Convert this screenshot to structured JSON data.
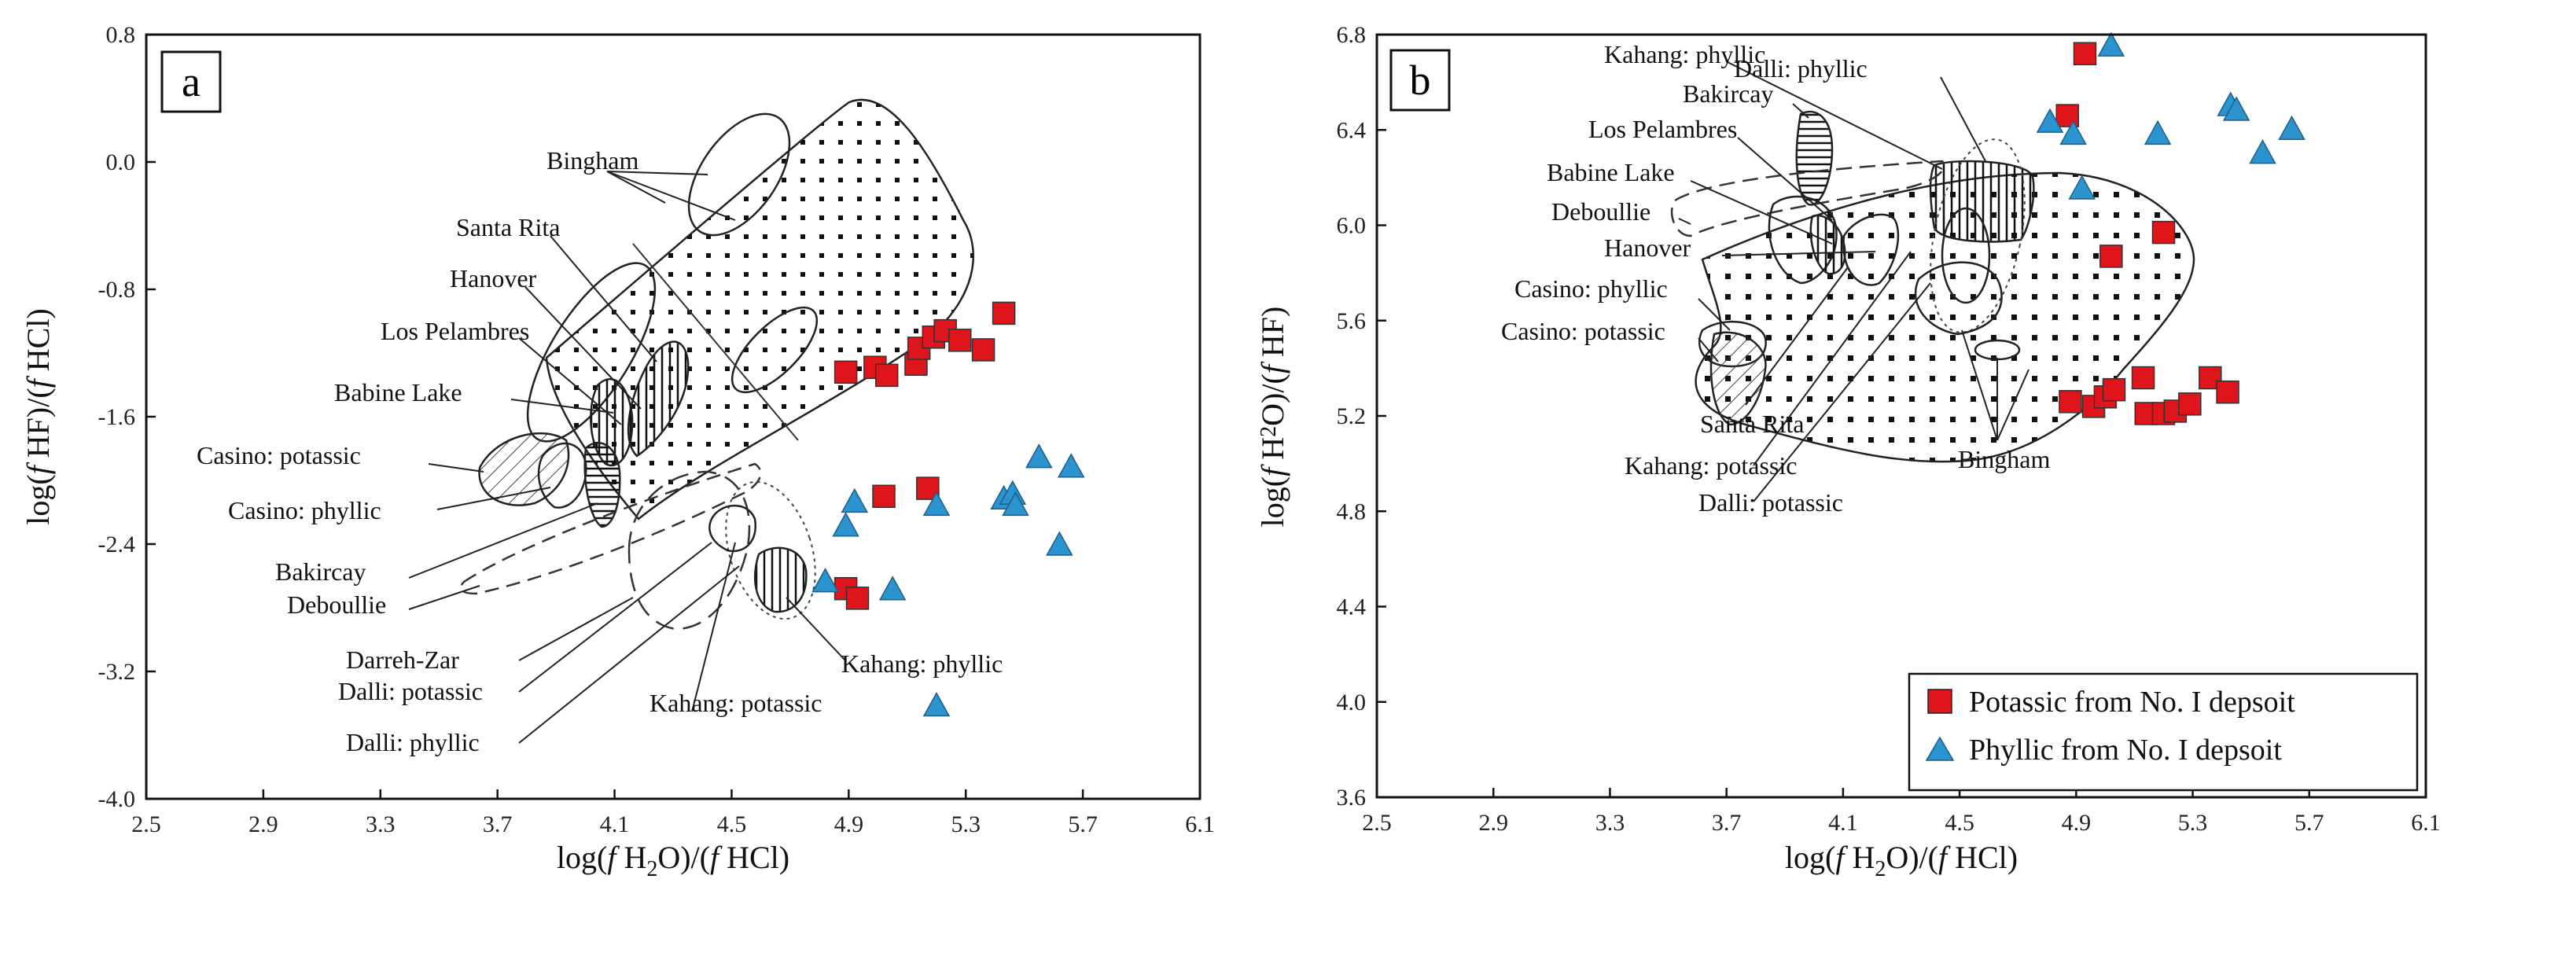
{
  "chart_data": [
    {
      "type": "scatter",
      "panel_label": "a",
      "xlabel_parts": [
        "log(",
        "f",
        " H",
        "2",
        "O)/(",
        "f",
        " HCl)"
      ],
      "ylabel_parts": [
        "log(",
        "f",
        " HF)/(",
        "f",
        " HCl)"
      ],
      "xlim": [
        2.5,
        6.1
      ],
      "ylim": [
        -4.0,
        0.8
      ],
      "x_ticks": [
        2.5,
        2.9,
        3.3,
        3.7,
        4.1,
        4.5,
        4.9,
        5.3,
        5.7,
        6.1
      ],
      "y_ticks": [
        -4.0,
        -3.2,
        -2.4,
        -1.6,
        -0.8,
        0.0,
        0.8
      ],
      "x_tick_labels": [
        "2.5",
        "2.9",
        "3.3",
        "3.7",
        "4.1",
        "4.5",
        "4.9",
        "5.3",
        "5.7",
        "6.1"
      ],
      "y_tick_labels": [
        "-4.0",
        "-3.2",
        "-2.4",
        "-1.6",
        "-0.8",
        "0.0",
        "0.8"
      ],
      "series": [
        {
          "name": "Potassic from No. I depsoit",
          "marker": "square",
          "color": "#e0141b",
          "points": [
            [
              4.89,
              -1.32
            ],
            [
              4.99,
              -1.29
            ],
            [
              5.03,
              -1.34
            ],
            [
              5.13,
              -1.27
            ],
            [
              5.14,
              -1.17
            ],
            [
              5.19,
              -1.1
            ],
            [
              5.23,
              -1.06
            ],
            [
              5.28,
              -1.12
            ],
            [
              5.36,
              -1.18
            ],
            [
              5.43,
              -0.95
            ],
            [
              5.02,
              -2.1
            ],
            [
              5.17,
              -2.05
            ],
            [
              4.89,
              -2.68
            ],
            [
              4.93,
              -2.74
            ]
          ]
        },
        {
          "name": "Phyllic from No. I depsoit",
          "marker": "triangle",
          "color": "#2b93cf",
          "points": [
            [
              4.92,
              -2.14
            ],
            [
              4.89,
              -2.29
            ],
            [
              5.2,
              -2.16
            ],
            [
              5.43,
              -2.12
            ],
            [
              5.46,
              -2.09
            ],
            [
              5.47,
              -2.16
            ],
            [
              5.55,
              -1.86
            ],
            [
              5.66,
              -1.92
            ],
            [
              5.62,
              -2.41
            ],
            [
              4.82,
              -2.64
            ],
            [
              5.05,
              -2.69
            ],
            [
              5.2,
              -3.42
            ]
          ]
        }
      ],
      "annotations": [
        "Bingham",
        "Santa Rita",
        "Hanover",
        "Los Pelambres",
        "Babine  Lake",
        "Casino: potassic",
        "Casino: phyllic",
        "Bakircay",
        "Deboullie",
        "Darreh-Zar",
        "Dalli: potassic",
        "Dalli: phyllic",
        "Kahang: potassic",
        "Kahang: phyllic"
      ]
    },
    {
      "type": "scatter",
      "panel_label": "b",
      "xlabel_parts": [
        "log(",
        "f",
        " H",
        "2",
        "O)/(",
        "f",
        " HCl)"
      ],
      "ylabel_parts": [
        "log(",
        "f",
        " H",
        "2",
        "O)/(",
        "f",
        " HF)"
      ],
      "xlim": [
        2.5,
        6.1
      ],
      "ylim": [
        3.6,
        6.8
      ],
      "x_ticks": [
        2.5,
        2.9,
        3.3,
        3.7,
        4.1,
        4.5,
        4.9,
        5.3,
        5.7,
        6.1
      ],
      "y_ticks": [
        3.6,
        4.0,
        4.4,
        4.8,
        5.2,
        5.6,
        6.0,
        6.4,
        6.8
      ],
      "x_tick_labels": [
        "2.5",
        "2.9",
        "3.3",
        "3.7",
        "4.1",
        "4.5",
        "4.9",
        "5.3",
        "5.7",
        "6.1"
      ],
      "y_tick_labels": [
        "3.6",
        "4.0",
        "4.4",
        "4.8",
        "5.2",
        "5.6",
        "6.0",
        "6.4",
        "6.8"
      ],
      "series": [
        {
          "name": "Potassic from No. I depsoit",
          "marker": "square",
          "color": "#e0141b",
          "points": [
            [
              4.93,
              6.72
            ],
            [
              4.87,
              6.46
            ],
            [
              5.2,
              5.97
            ],
            [
              5.02,
              5.87
            ],
            [
              4.88,
              5.26
            ],
            [
              4.96,
              5.24
            ],
            [
              5.0,
              5.28
            ],
            [
              5.03,
              5.31
            ],
            [
              5.13,
              5.36
            ],
            [
              5.14,
              5.21
            ],
            [
              5.2,
              5.21
            ],
            [
              5.24,
              5.22
            ],
            [
              5.29,
              5.25
            ],
            [
              5.36,
              5.36
            ],
            [
              5.42,
              5.3
            ]
          ]
        },
        {
          "name": "Phyllic from No. I depsoit",
          "marker": "triangle",
          "color": "#2b93cf",
          "points": [
            [
              5.02,
              6.75
            ],
            [
              4.81,
              6.43
            ],
            [
              4.89,
              6.38
            ],
            [
              4.92,
              6.15
            ],
            [
              5.18,
              6.38
            ],
            [
              5.43,
              6.5
            ],
            [
              5.45,
              6.48
            ],
            [
              5.54,
              6.3
            ],
            [
              5.64,
              6.4
            ]
          ]
        }
      ],
      "annotations": [
        "Kahang: phyllic",
        "Dalli: phyllic",
        "Bakircay",
        "Los Pelambres",
        "Babine  Lake",
        "Deboullie",
        "Hanover",
        "Casino: phyllic",
        "Casino: potassic",
        "Santa Rita",
        "Kahang: potassic",
        "Dalli: potassic",
        "Bingham"
      ],
      "legend": {
        "position": "bottom-right",
        "entries": [
          "Potassic from No. I depsoit",
          "Phyllic from No. I depsoit"
        ]
      }
    }
  ]
}
